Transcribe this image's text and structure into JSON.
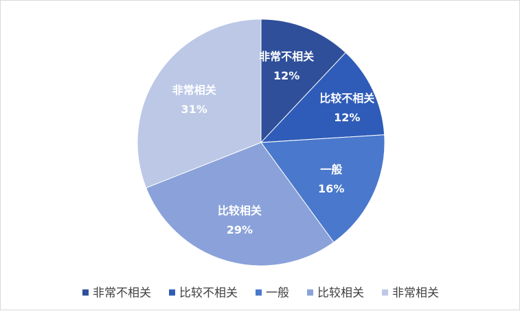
{
  "chart_data": {
    "type": "pie",
    "categories": [
      "非常不相关",
      "比较不相关",
      "一般",
      "比较相关",
      "非常相关"
    ],
    "values": [
      12,
      12,
      16,
      29,
      31
    ],
    "value_labels": [
      "12%",
      "12%",
      "16%",
      "29%",
      "31%"
    ],
    "colors": [
      "#2f4f9a",
      "#2f5cb8",
      "#4a78cc",
      "#8aa2d9",
      "#bcc8e6"
    ],
    "legend": {
      "position": "bottom",
      "entries": [
        "非常不相关",
        "比较不相关",
        "一般",
        "比较相关",
        "非常相关"
      ]
    }
  }
}
